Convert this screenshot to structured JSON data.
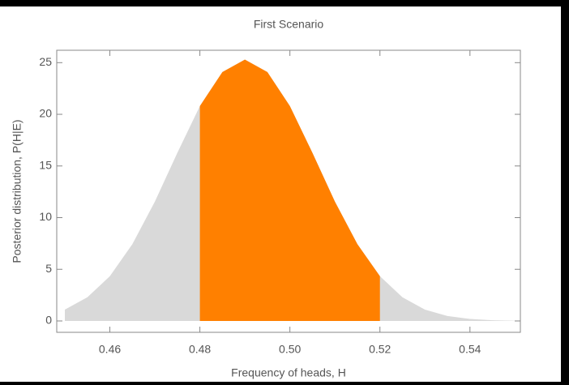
{
  "chart_data": {
    "type": "area",
    "title": "First Scenario",
    "x_label": "Frequency of heads, H",
    "y_label": "Posterior distribution, P(H|E)",
    "x": [
      0.45,
      0.455,
      0.46,
      0.465,
      0.47,
      0.475,
      0.48,
      0.485,
      0.49,
      0.495,
      0.5,
      0.505,
      0.51,
      0.515,
      0.52,
      0.525,
      0.53,
      0.535,
      0.54,
      0.545,
      0.55
    ],
    "values": [
      1.1,
      2.29,
      4.33,
      7.43,
      11.55,
      16.28,
      20.8,
      24.09,
      25.3,
      24.09,
      20.8,
      16.28,
      11.55,
      7.43,
      4.33,
      2.29,
      1.1,
      0.48,
      0.19,
      0.07,
      0.02
    ],
    "color": "#d9d9d9",
    "highlight_range": [
      0.48,
      0.52
    ],
    "highlight_color": "#ff8000",
    "xlim": [
      0.4482,
      0.5512
    ],
    "ylim": [
      -1.1,
      26.2
    ],
    "xticks": [
      0.46,
      0.48,
      {
        "value": 0.5,
        "label": "0.50"
      },
      0.52,
      0.54
    ],
    "yticks": [
      0,
      5,
      10,
      15,
      20,
      25
    ]
  }
}
